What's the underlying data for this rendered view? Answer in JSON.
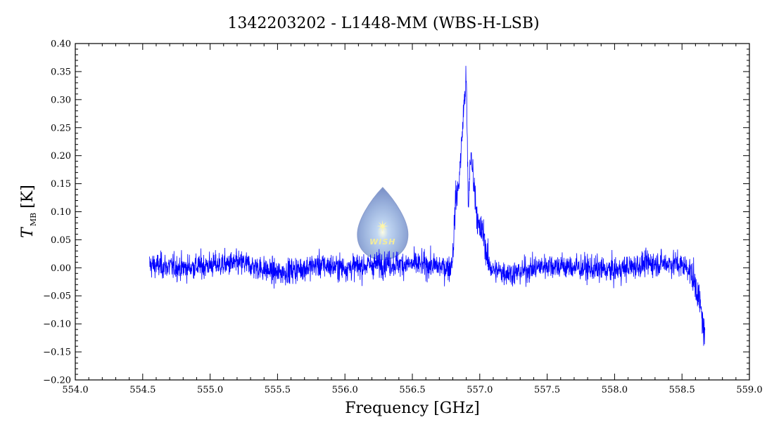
{
  "chart_data": {
    "type": "line",
    "title": "1342203202 - L1448-MM (WBS-H-LSB)",
    "xlabel": "Frequency [GHz]",
    "ylabel_main": "T",
    "ylabel_sub": "MB",
    "ylabel_unit": "[K]",
    "xlim": [
      554.0,
      559.0
    ],
    "ylim": [
      -0.2,
      0.4
    ],
    "x_ticks": [
      "554.0",
      "554.5",
      "555.0",
      "555.5",
      "556.0",
      "556.5",
      "557.0",
      "557.5",
      "558.0",
      "558.5",
      "559.0"
    ],
    "y_ticks": [
      "-0.20",
      "-0.15",
      "-0.10",
      "-0.05",
      "0.00",
      "0.05",
      "0.10",
      "0.15",
      "0.20",
      "0.25",
      "0.30",
      "0.35",
      "0.40"
    ],
    "grid": false,
    "line_color": "#0000ff",
    "series": [
      {
        "x_range": [
          554.55,
          558.67
        ],
        "profile": [
          [
            554.55,
            0.005
          ],
          [
            554.8,
            0.0
          ],
          [
            555.0,
            0.005
          ],
          [
            555.25,
            0.008
          ],
          [
            555.5,
            -0.01
          ],
          [
            555.8,
            0.005
          ],
          [
            556.0,
            0.0
          ],
          [
            556.3,
            0.008
          ],
          [
            556.6,
            0.005
          ],
          [
            556.78,
            0.0
          ],
          [
            556.8,
            0.02
          ],
          [
            556.82,
            0.12
          ],
          [
            556.84,
            0.14
          ],
          [
            556.86,
            0.2
          ],
          [
            556.88,
            0.28
          ],
          [
            556.9,
            0.34
          ],
          [
            556.915,
            0.1
          ],
          [
            556.93,
            0.2
          ],
          [
            556.95,
            0.17
          ],
          [
            556.97,
            0.12
          ],
          [
            556.99,
            0.07
          ],
          [
            557.03,
            0.06
          ],
          [
            557.06,
            0.01
          ],
          [
            557.1,
            -0.005
          ],
          [
            557.25,
            -0.01
          ],
          [
            557.5,
            0.005
          ],
          [
            557.75,
            0.0
          ],
          [
            558.0,
            -0.005
          ],
          [
            558.25,
            0.008
          ],
          [
            558.45,
            0.008
          ],
          [
            558.55,
            0.0
          ],
          [
            558.6,
            -0.03
          ],
          [
            558.63,
            -0.06
          ],
          [
            558.65,
            -0.09
          ],
          [
            558.67,
            -0.13
          ]
        ],
        "noise_sigma": 0.016
      }
    ]
  },
  "logo": {
    "text": "WISH",
    "center_x": 556.28,
    "center_y": 0.072
  }
}
